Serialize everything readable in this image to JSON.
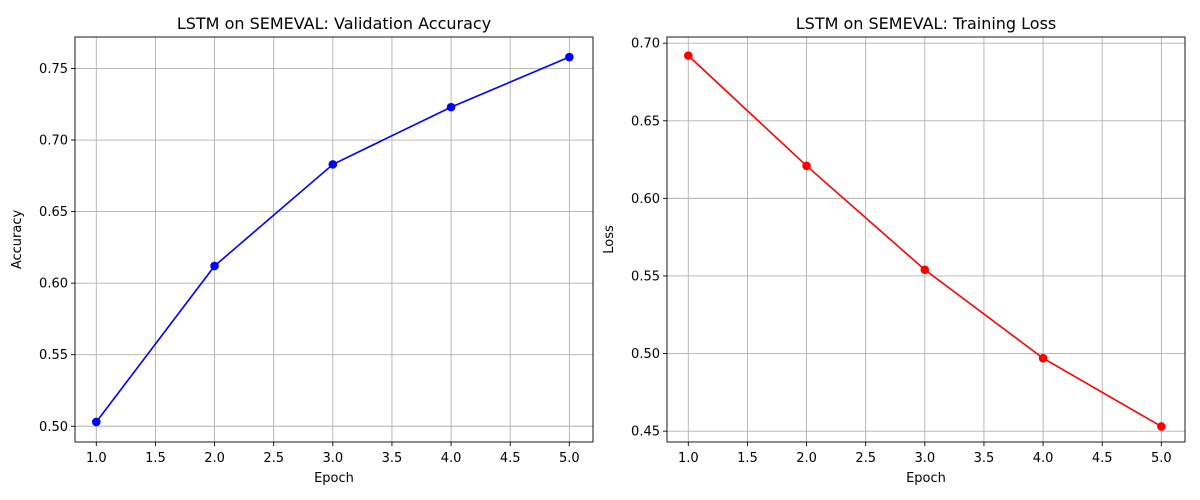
{
  "figure": {
    "background": "#ffffff"
  },
  "chart_data": [
    {
      "type": "line",
      "title": "LSTM on SEMEVAL: Validation Accuracy",
      "xlabel": "Epoch",
      "ylabel": "Accuracy",
      "x": [
        1,
        2,
        3,
        4,
        5
      ],
      "series": [
        {
          "values": [
            0.503,
            0.612,
            0.683,
            0.723,
            0.758
          ],
          "color": "#0000ff",
          "marker": "circle"
        }
      ],
      "xlim": [
        0.82,
        5.2
      ],
      "ylim": [
        0.489,
        0.772
      ],
      "xticks": [
        1.0,
        1.5,
        2.0,
        2.5,
        3.0,
        3.5,
        4.0,
        4.5,
        5.0
      ],
      "xtick_labels": [
        "1.0",
        "1.5",
        "2.0",
        "2.5",
        "3.0",
        "3.5",
        "4.0",
        "4.5",
        "5.0"
      ],
      "yticks": [
        0.5,
        0.55,
        0.6,
        0.65,
        0.7,
        0.75
      ],
      "ytick_labels": [
        "0.50",
        "0.55",
        "0.60",
        "0.65",
        "0.70",
        "0.75"
      ],
      "grid": true
    },
    {
      "type": "line",
      "title": "LSTM on SEMEVAL: Training Loss",
      "xlabel": "Epoch",
      "ylabel": "Loss",
      "x": [
        1,
        2,
        3,
        4,
        5
      ],
      "series": [
        {
          "values": [
            0.692,
            0.621,
            0.554,
            0.497,
            0.453
          ],
          "color": "#ff0000",
          "marker": "circle"
        }
      ],
      "xlim": [
        0.82,
        5.2
      ],
      "ylim": [
        0.443,
        0.704
      ],
      "xticks": [
        1.0,
        1.5,
        2.0,
        2.5,
        3.0,
        3.5,
        4.0,
        4.5,
        5.0
      ],
      "xtick_labels": [
        "1.0",
        "1.5",
        "2.0",
        "2.5",
        "3.0",
        "3.5",
        "4.0",
        "4.5",
        "5.0"
      ],
      "yticks": [
        0.45,
        0.5,
        0.55,
        0.6,
        0.65,
        0.7
      ],
      "ytick_labels": [
        "0.45",
        "0.50",
        "0.55",
        "0.60",
        "0.65",
        "0.70"
      ],
      "grid": true
    }
  ]
}
